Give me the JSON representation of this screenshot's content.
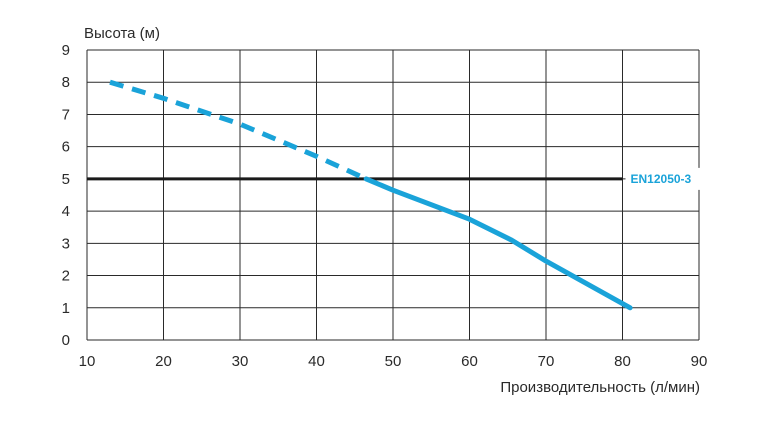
{
  "chart_data": {
    "type": "line",
    "ylabel": "Высота (м)",
    "xlabel": "Производительность (л/мин)",
    "xlim": [
      10,
      90
    ],
    "ylim": [
      0,
      9
    ],
    "x_ticks": [
      10,
      20,
      30,
      40,
      50,
      60,
      70,
      80,
      90
    ],
    "y_ticks": [
      0,
      1,
      2,
      3,
      4,
      5,
      6,
      7,
      8,
      9
    ],
    "grid": true,
    "reference_line": {
      "y": 5,
      "x_range": [
        10,
        80
      ],
      "label": "EN12050-3"
    },
    "series": [
      {
        "style": "dashed",
        "color": "#1aa3d9",
        "points": [
          [
            13,
            8.0
          ],
          [
            20,
            7.5
          ],
          [
            30,
            6.7
          ],
          [
            40,
            5.7
          ],
          [
            46.5,
            5.0
          ]
        ]
      },
      {
        "style": "solid",
        "color": "#1aa3d9",
        "points": [
          [
            46.5,
            5.0
          ],
          [
            50,
            4.65
          ],
          [
            60,
            3.75
          ],
          [
            65.5,
            3.1
          ],
          [
            70,
            2.45
          ],
          [
            81,
            1.0
          ]
        ]
      }
    ]
  }
}
